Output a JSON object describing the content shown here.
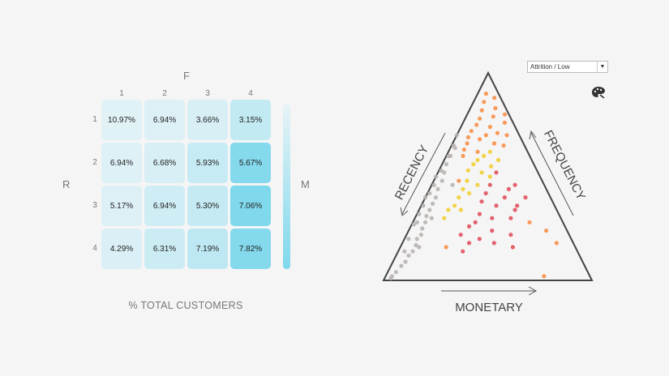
{
  "filter": {
    "value": "Attrition / Low"
  },
  "icons": {
    "filter_toggle": "chevron-down-icon",
    "palette": "palette-icon"
  },
  "matrix": {
    "f_label": "F",
    "r_label": "R",
    "m_label": "M",
    "caption": "% TOTAL CUSTOMERS",
    "columns": [
      "1",
      "2",
      "3",
      "4"
    ],
    "rows": [
      "1",
      "2",
      "3",
      "4"
    ],
    "cells": [
      [
        "10.97%",
        "6.94%",
        "3.66%",
        "3.15%"
      ],
      [
        "6.94%",
        "6.68%",
        "5.93%",
        "5.67%"
      ],
      [
        "5.17%",
        "6.94%",
        "5.30%",
        "7.06%"
      ],
      [
        "4.29%",
        "6.31%",
        "7.19%",
        "7.82%"
      ]
    ],
    "legend_colors": [
      "#e6f3f7",
      "#7fd8ec"
    ]
  },
  "chart_data": [
    {
      "type": "heatmap",
      "xlabel": "F",
      "ylabel": "R",
      "color_label": "M",
      "x_categories": [
        "1",
        "2",
        "3",
        "4"
      ],
      "y_categories": [
        "1",
        "2",
        "3",
        "4"
      ],
      "values": [
        [
          10.97,
          6.94,
          3.66,
          3.15
        ],
        [
          6.94,
          6.68,
          5.93,
          5.67
        ],
        [
          5.17,
          6.94,
          5.3,
          7.06
        ],
        [
          4.29,
          6.31,
          7.19,
          7.82
        ]
      ],
      "m_color_levels": [
        [
          0.05,
          0.1,
          0.15,
          0.35
        ],
        [
          0.08,
          0.15,
          0.3,
          0.95
        ],
        [
          0.1,
          0.22,
          0.32,
          1.0
        ],
        [
          0.12,
          0.25,
          0.4,
          0.95
        ]
      ],
      "caption": "% TOTAL CUSTOMERS"
    },
    {
      "type": "scatter",
      "form": "ternary",
      "axis_labels": {
        "left": "RECENCY",
        "right": "FREQUENCY",
        "bottom": "MONETARY"
      },
      "colors": {
        "grey": "#b9b4b0",
        "yellow": "#f2cf35",
        "orange": "#f6914a",
        "red": "#e0525e"
      },
      "points": [
        {
          "r": 0.06,
          "f": 0.9,
          "c": "orange"
        },
        {
          "r": 0.03,
          "f": 0.88,
          "c": "orange"
        },
        {
          "r": 0.09,
          "f": 0.86,
          "c": "orange"
        },
        {
          "r": 0.05,
          "f": 0.83,
          "c": "orange"
        },
        {
          "r": 0.12,
          "f": 0.82,
          "c": "orange"
        },
        {
          "r": 0.02,
          "f": 0.8,
          "c": "orange"
        },
        {
          "r": 0.15,
          "f": 0.78,
          "c": "orange"
        },
        {
          "r": 0.08,
          "f": 0.79,
          "c": "orange"
        },
        {
          "r": 0.18,
          "f": 0.75,
          "c": "orange"
        },
        {
          "r": 0.22,
          "f": 0.72,
          "c": "orange"
        },
        {
          "r": 0.12,
          "f": 0.74,
          "c": "orange"
        },
        {
          "r": 0.04,
          "f": 0.76,
          "c": "orange"
        },
        {
          "r": 0.25,
          "f": 0.69,
          "c": "orange"
        },
        {
          "r": 0.27,
          "f": 0.66,
          "c": "orange"
        },
        {
          "r": 0.1,
          "f": 0.71,
          "c": "orange"
        },
        {
          "r": 0.3,
          "f": 0.63,
          "c": "orange"
        },
        {
          "r": 0.16,
          "f": 0.7,
          "c": "orange"
        },
        {
          "r": 0.06,
          "f": 0.7,
          "c": "orange"
        },
        {
          "r": 0.2,
          "f": 0.68,
          "c": "orange"
        },
        {
          "r": 0.14,
          "f": 0.66,
          "c": "orange"
        },
        {
          "r": 0.32,
          "f": 0.6,
          "c": "orange"
        },
        {
          "r": 0.1,
          "f": 0.65,
          "c": "orange"
        },
        {
          "r": 0.24,
          "f": 0.62,
          "c": "orange"
        },
        {
          "r": 0.4,
          "f": 0.48,
          "c": "orange"
        },
        {
          "r": 0.18,
          "f": 0.62,
          "c": "yellow"
        },
        {
          "r": 0.22,
          "f": 0.6,
          "c": "yellow"
        },
        {
          "r": 0.26,
          "f": 0.58,
          "c": "yellow"
        },
        {
          "r": 0.16,
          "f": 0.58,
          "c": "yellow"
        },
        {
          "r": 0.29,
          "f": 0.56,
          "c": "yellow"
        },
        {
          "r": 0.21,
          "f": 0.55,
          "c": "yellow"
        },
        {
          "r": 0.33,
          "f": 0.53,
          "c": "yellow"
        },
        {
          "r": 0.27,
          "f": 0.52,
          "c": "yellow"
        },
        {
          "r": 0.24,
          "f": 0.5,
          "c": "yellow"
        },
        {
          "r": 0.36,
          "f": 0.48,
          "c": "yellow"
        },
        {
          "r": 0.32,
          "f": 0.46,
          "c": "yellow"
        },
        {
          "r": 0.4,
          "f": 0.44,
          "c": "yellow"
        },
        {
          "r": 0.44,
          "f": 0.4,
          "c": "yellow"
        },
        {
          "r": 0.38,
          "f": 0.42,
          "c": "yellow"
        },
        {
          "r": 0.48,
          "f": 0.36,
          "c": "yellow"
        },
        {
          "r": 0.52,
          "f": 0.34,
          "c": "yellow"
        },
        {
          "r": 0.46,
          "f": 0.34,
          "c": "yellow"
        },
        {
          "r": 0.56,
          "f": 0.3,
          "c": "yellow"
        },
        {
          "r": 0.2,
          "f": 0.52,
          "c": "red"
        },
        {
          "r": 0.26,
          "f": 0.46,
          "c": "red"
        },
        {
          "r": 0.18,
          "f": 0.44,
          "c": "red"
        },
        {
          "r": 0.3,
          "f": 0.42,
          "c": "red"
        },
        {
          "r": 0.22,
          "f": 0.4,
          "c": "red"
        },
        {
          "r": 0.14,
          "f": 0.46,
          "c": "red"
        },
        {
          "r": 0.34,
          "f": 0.38,
          "c": "red"
        },
        {
          "r": 0.28,
          "f": 0.36,
          "c": "red"
        },
        {
          "r": 0.2,
          "f": 0.34,
          "c": "red"
        },
        {
          "r": 0.38,
          "f": 0.32,
          "c": "red"
        },
        {
          "r": 0.12,
          "f": 0.4,
          "c": "red"
        },
        {
          "r": 0.33,
          "f": 0.3,
          "c": "red"
        },
        {
          "r": 0.42,
          "f": 0.28,
          "c": "red"
        },
        {
          "r": 0.24,
          "f": 0.3,
          "c": "red"
        },
        {
          "r": 0.46,
          "f": 0.26,
          "c": "red"
        },
        {
          "r": 0.36,
          "f": 0.24,
          "c": "red"
        },
        {
          "r": 0.28,
          "f": 0.22,
          "c": "red"
        },
        {
          "r": 0.52,
          "f": 0.22,
          "c": "red"
        },
        {
          "r": 0.44,
          "f": 0.2,
          "c": "red"
        },
        {
          "r": 0.5,
          "f": 0.18,
          "c": "red"
        },
        {
          "r": 0.38,
          "f": 0.18,
          "c": "red"
        },
        {
          "r": 0.3,
          "f": 0.16,
          "c": "red"
        },
        {
          "r": 0.55,
          "f": 0.14,
          "c": "red"
        },
        {
          "r": 0.18,
          "f": 0.36,
          "c": "red"
        },
        {
          "r": 0.16,
          "f": 0.28,
          "c": "orange"
        },
        {
          "r": 0.1,
          "f": 0.24,
          "c": "orange"
        },
        {
          "r": 0.08,
          "f": 0.18,
          "c": "orange"
        },
        {
          "r": 0.62,
          "f": 0.16,
          "c": "orange"
        },
        {
          "r": 0.22,
          "f": 0.02,
          "c": "orange"
        },
        {
          "r": 0.3,
          "f": 0.7,
          "c": "grey"
        },
        {
          "r": 0.34,
          "f": 0.65,
          "c": "grey"
        },
        {
          "r": 0.38,
          "f": 0.6,
          "c": "grey"
        },
        {
          "r": 0.42,
          "f": 0.56,
          "c": "grey"
        },
        {
          "r": 0.45,
          "f": 0.52,
          "c": "grey"
        },
        {
          "r": 0.48,
          "f": 0.48,
          "c": "grey"
        },
        {
          "r": 0.52,
          "f": 0.44,
          "c": "grey"
        },
        {
          "r": 0.55,
          "f": 0.4,
          "c": "grey"
        },
        {
          "r": 0.58,
          "f": 0.37,
          "c": "grey"
        },
        {
          "r": 0.61,
          "f": 0.34,
          "c": "grey"
        },
        {
          "r": 0.64,
          "f": 0.31,
          "c": "grey"
        },
        {
          "r": 0.66,
          "f": 0.28,
          "c": "grey"
        },
        {
          "r": 0.69,
          "f": 0.25,
          "c": "grey"
        },
        {
          "r": 0.71,
          "f": 0.22,
          "c": "grey"
        },
        {
          "r": 0.74,
          "f": 0.2,
          "c": "grey"
        },
        {
          "r": 0.76,
          "f": 0.17,
          "c": "grey"
        },
        {
          "r": 0.79,
          "f": 0.14,
          "c": "grey"
        },
        {
          "r": 0.82,
          "f": 0.12,
          "c": "grey"
        },
        {
          "r": 0.85,
          "f": 0.09,
          "c": "grey"
        },
        {
          "r": 0.88,
          "f": 0.07,
          "c": "grey"
        },
        {
          "r": 0.92,
          "f": 0.04,
          "c": "grey"
        },
        {
          "r": 0.95,
          "f": 0.02,
          "c": "grey"
        },
        {
          "r": 0.96,
          "f": 0.01,
          "c": "grey"
        },
        {
          "r": 0.4,
          "f": 0.62,
          "c": "grey"
        },
        {
          "r": 0.47,
          "f": 0.55,
          "c": "grey"
        },
        {
          "r": 0.54,
          "f": 0.48,
          "c": "grey"
        },
        {
          "r": 0.6,
          "f": 0.4,
          "c": "grey"
        },
        {
          "r": 0.67,
          "f": 0.32,
          "c": "grey"
        },
        {
          "r": 0.72,
          "f": 0.27,
          "c": "grey"
        },
        {
          "r": 0.78,
          "f": 0.2,
          "c": "grey"
        },
        {
          "r": 0.36,
          "f": 0.68,
          "c": "grey"
        },
        {
          "r": 0.5,
          "f": 0.5,
          "c": "grey"
        },
        {
          "r": 0.63,
          "f": 0.36,
          "c": "grey"
        },
        {
          "r": 0.7,
          "f": 0.28,
          "c": "grey"
        },
        {
          "r": 0.83,
          "f": 0.14,
          "c": "grey"
        },
        {
          "r": 0.57,
          "f": 0.42,
          "c": "grey"
        },
        {
          "r": 0.44,
          "f": 0.46,
          "c": "grey"
        },
        {
          "r": 0.62,
          "f": 0.3,
          "c": "grey"
        },
        {
          "r": 0.75,
          "f": 0.16,
          "c": "grey"
        }
      ]
    }
  ]
}
